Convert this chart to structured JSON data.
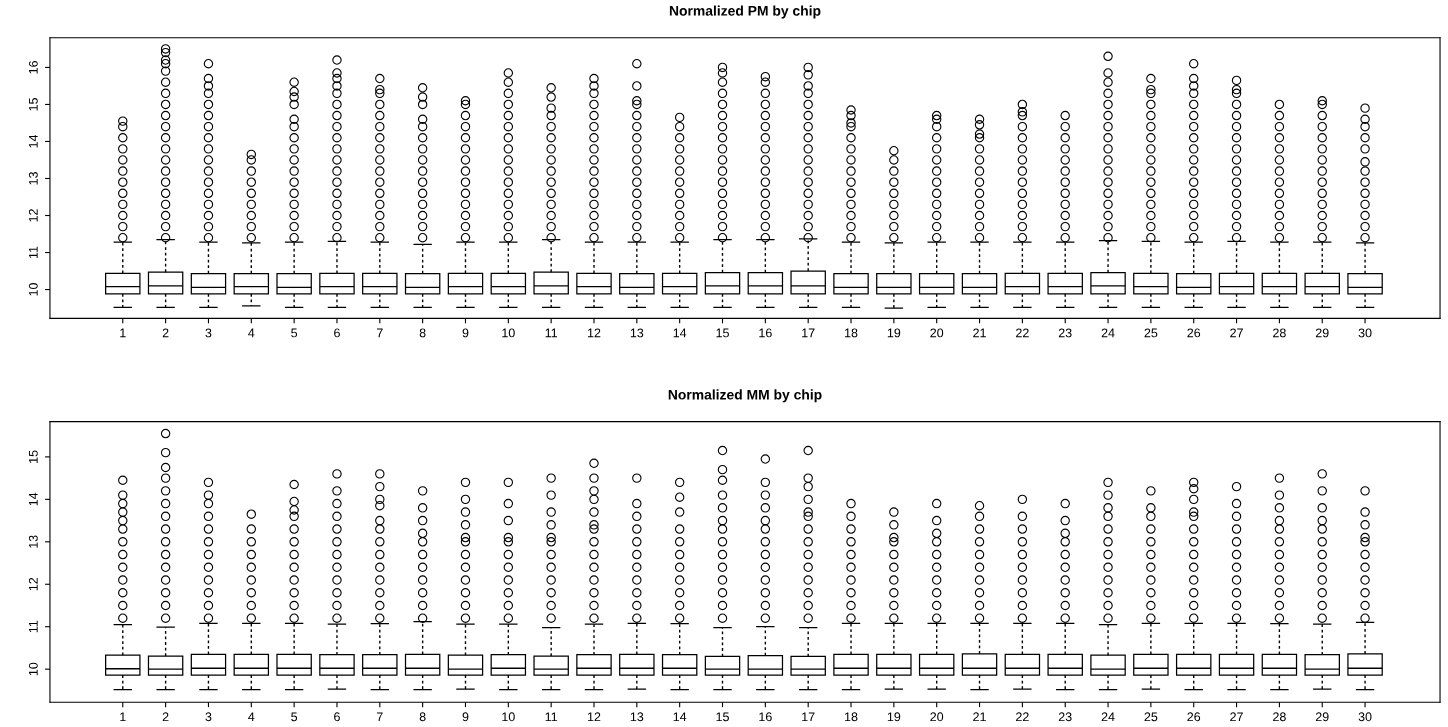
{
  "chart_data": [
    {
      "type": "box",
      "title": "Normalized PM by chip",
      "categories": [
        "1",
        "2",
        "3",
        "4",
        "5",
        "6",
        "7",
        "8",
        "9",
        "10",
        "11",
        "12",
        "13",
        "14",
        "15",
        "16",
        "17",
        "18",
        "19",
        "20",
        "21",
        "22",
        "23",
        "24",
        "25",
        "26",
        "27",
        "28",
        "29",
        "30"
      ],
      "ylim": [
        9.22,
        16.8
      ],
      "yticks": [
        10,
        11,
        12,
        13,
        14,
        15,
        16
      ],
      "grid": false,
      "marker": "circle",
      "color": "#000000",
      "boxes": [
        {
          "low": 9.52,
          "q1": 9.88,
          "median": 10.08,
          "q3": 10.44,
          "high": 11.28,
          "outliers": [
            11.4,
            11.7,
            12.0,
            12.3,
            12.6,
            12.9,
            13.2,
            13.5,
            13.8,
            14.1,
            14.4,
            14.55
          ]
        },
        {
          "low": 9.52,
          "q1": 9.88,
          "median": 10.1,
          "q3": 10.47,
          "high": 11.35,
          "outliers": [
            11.4,
            11.7,
            12.0,
            12.3,
            12.6,
            12.9,
            13.2,
            13.5,
            13.8,
            14.1,
            14.4,
            14.7,
            15.0,
            15.3,
            15.6,
            15.9,
            16.1,
            16.2,
            16.4,
            16.5
          ]
        },
        {
          "low": 9.52,
          "q1": 9.88,
          "median": 10.06,
          "q3": 10.43,
          "high": 11.28,
          "outliers": [
            11.4,
            11.7,
            12.0,
            12.3,
            12.6,
            12.9,
            13.2,
            13.5,
            13.8,
            14.1,
            14.4,
            14.7,
            15.0,
            15.3,
            15.5,
            15.7,
            16.1
          ]
        },
        {
          "low": 9.56,
          "q1": 9.88,
          "median": 10.08,
          "q3": 10.43,
          "high": 11.26,
          "outliers": [
            11.4,
            11.7,
            12.0,
            12.3,
            12.6,
            12.9,
            13.2,
            13.5,
            13.65
          ]
        },
        {
          "low": 9.52,
          "q1": 9.88,
          "median": 10.06,
          "q3": 10.43,
          "high": 11.28,
          "outliers": [
            11.4,
            11.7,
            12.0,
            12.3,
            12.6,
            12.9,
            13.2,
            13.5,
            13.8,
            14.1,
            14.4,
            14.6,
            15.0,
            15.2,
            15.35,
            15.6
          ]
        },
        {
          "low": 9.52,
          "q1": 9.88,
          "median": 10.08,
          "q3": 10.44,
          "high": 11.3,
          "outliers": [
            11.4,
            11.7,
            12.0,
            12.3,
            12.6,
            12.9,
            13.2,
            13.5,
            13.8,
            14.1,
            14.4,
            14.7,
            15.0,
            15.3,
            15.5,
            15.7,
            15.85,
            16.2
          ]
        },
        {
          "low": 9.52,
          "q1": 9.88,
          "median": 10.08,
          "q3": 10.44,
          "high": 11.28,
          "outliers": [
            11.4,
            11.7,
            12.0,
            12.3,
            12.6,
            12.9,
            13.2,
            13.5,
            13.8,
            14.1,
            14.4,
            14.7,
            15.0,
            15.3,
            15.4,
            15.7
          ]
        },
        {
          "low": 9.52,
          "q1": 9.88,
          "median": 10.06,
          "q3": 10.43,
          "high": 11.22,
          "outliers": [
            11.4,
            11.7,
            12.0,
            12.3,
            12.6,
            12.9,
            13.2,
            13.5,
            13.8,
            14.1,
            14.4,
            14.6,
            15.0,
            15.2,
            15.45
          ]
        },
        {
          "low": 9.52,
          "q1": 9.88,
          "median": 10.08,
          "q3": 10.44,
          "high": 11.28,
          "outliers": [
            11.4,
            11.7,
            12.0,
            12.3,
            12.6,
            12.9,
            13.2,
            13.5,
            13.8,
            14.1,
            14.4,
            14.7,
            15.0,
            15.1
          ]
        },
        {
          "low": 9.52,
          "q1": 9.88,
          "median": 10.08,
          "q3": 10.44,
          "high": 11.28,
          "outliers": [
            11.4,
            11.7,
            12.0,
            12.3,
            12.6,
            12.9,
            13.2,
            13.5,
            13.8,
            14.1,
            14.4,
            14.7,
            15.0,
            15.3,
            15.6,
            15.85
          ]
        },
        {
          "low": 9.52,
          "q1": 9.88,
          "median": 10.1,
          "q3": 10.47,
          "high": 11.35,
          "outliers": [
            11.4,
            11.7,
            12.0,
            12.3,
            12.6,
            12.9,
            13.2,
            13.5,
            13.8,
            14.1,
            14.4,
            14.7,
            14.9,
            15.2,
            15.45
          ]
        },
        {
          "low": 9.52,
          "q1": 9.88,
          "median": 10.08,
          "q3": 10.44,
          "high": 11.28,
          "outliers": [
            11.4,
            11.7,
            12.0,
            12.3,
            12.6,
            12.9,
            13.2,
            13.5,
            13.8,
            14.1,
            14.4,
            14.7,
            15.0,
            15.3,
            15.5,
            15.7
          ]
        },
        {
          "low": 9.52,
          "q1": 9.88,
          "median": 10.06,
          "q3": 10.43,
          "high": 11.28,
          "outliers": [
            11.4,
            11.7,
            12.0,
            12.3,
            12.6,
            12.9,
            13.2,
            13.5,
            13.8,
            14.1,
            14.4,
            14.7,
            15.0,
            15.1,
            15.5,
            16.1
          ]
        },
        {
          "low": 9.52,
          "q1": 9.88,
          "median": 10.08,
          "q3": 10.44,
          "high": 11.28,
          "outliers": [
            11.4,
            11.7,
            12.0,
            12.3,
            12.6,
            12.9,
            13.2,
            13.5,
            13.8,
            14.1,
            14.4,
            14.65
          ]
        },
        {
          "low": 9.52,
          "q1": 9.88,
          "median": 10.1,
          "q3": 10.46,
          "high": 11.35,
          "outliers": [
            11.4,
            11.7,
            12.0,
            12.3,
            12.6,
            12.9,
            13.2,
            13.5,
            13.8,
            14.1,
            14.4,
            14.7,
            15.0,
            15.3,
            15.6,
            15.85,
            16.0
          ]
        },
        {
          "low": 9.52,
          "q1": 9.88,
          "median": 10.1,
          "q3": 10.46,
          "high": 11.35,
          "outliers": [
            11.4,
            11.7,
            12.0,
            12.3,
            12.6,
            12.9,
            13.2,
            13.5,
            13.8,
            14.1,
            14.4,
            14.7,
            15.0,
            15.3,
            15.6,
            15.75
          ]
        },
        {
          "low": 9.52,
          "q1": 9.88,
          "median": 10.1,
          "q3": 10.5,
          "high": 11.37,
          "outliers": [
            11.4,
            11.7,
            12.0,
            12.3,
            12.6,
            12.9,
            13.2,
            13.5,
            13.8,
            14.1,
            14.4,
            14.7,
            15.0,
            15.3,
            15.5,
            15.8,
            16.0
          ]
        },
        {
          "low": 9.52,
          "q1": 9.88,
          "median": 10.06,
          "q3": 10.43,
          "high": 11.28,
          "outliers": [
            11.4,
            11.7,
            12.0,
            12.3,
            12.6,
            12.9,
            13.2,
            13.5,
            13.8,
            14.1,
            14.4,
            14.5,
            14.7,
            14.85
          ]
        },
        {
          "low": 9.5,
          "q1": 9.88,
          "median": 10.06,
          "q3": 10.43,
          "high": 11.26,
          "outliers": [
            11.4,
            11.7,
            12.0,
            12.3,
            12.6,
            12.9,
            13.2,
            13.5,
            13.75
          ]
        },
        {
          "low": 9.52,
          "q1": 9.88,
          "median": 10.06,
          "q3": 10.43,
          "high": 11.28,
          "outliers": [
            11.4,
            11.7,
            12.0,
            12.3,
            12.6,
            12.9,
            13.2,
            13.5,
            13.8,
            14.1,
            14.4,
            14.6,
            14.7
          ]
        },
        {
          "low": 9.52,
          "q1": 9.88,
          "median": 10.06,
          "q3": 10.43,
          "high": 11.28,
          "outliers": [
            11.4,
            11.7,
            12.0,
            12.3,
            12.6,
            12.9,
            13.2,
            13.5,
            13.8,
            14.1,
            14.2,
            14.45,
            14.6
          ]
        },
        {
          "low": 9.52,
          "q1": 9.88,
          "median": 10.08,
          "q3": 10.44,
          "high": 11.28,
          "outliers": [
            11.4,
            11.7,
            12.0,
            12.3,
            12.6,
            12.9,
            13.2,
            13.5,
            13.8,
            14.1,
            14.4,
            14.7,
            14.8,
            15.0
          ]
        },
        {
          "low": 9.52,
          "q1": 9.88,
          "median": 10.08,
          "q3": 10.44,
          "high": 11.28,
          "outliers": [
            11.4,
            11.7,
            12.0,
            12.3,
            12.6,
            12.9,
            13.2,
            13.5,
            13.8,
            14.1,
            14.4,
            14.7
          ]
        },
        {
          "low": 9.52,
          "q1": 9.88,
          "median": 10.1,
          "q3": 10.46,
          "high": 11.32,
          "outliers": [
            11.4,
            11.7,
            12.0,
            12.3,
            12.6,
            12.9,
            13.2,
            13.5,
            13.8,
            14.1,
            14.4,
            14.7,
            15.0,
            15.3,
            15.6,
            15.85,
            16.3
          ]
        },
        {
          "low": 9.52,
          "q1": 9.88,
          "median": 10.08,
          "q3": 10.44,
          "high": 11.3,
          "outliers": [
            11.4,
            11.7,
            12.0,
            12.3,
            12.6,
            12.9,
            13.2,
            13.5,
            13.8,
            14.1,
            14.4,
            14.7,
            15.0,
            15.3,
            15.4,
            15.7
          ]
        },
        {
          "low": 9.52,
          "q1": 9.88,
          "median": 10.06,
          "q3": 10.43,
          "high": 11.28,
          "outliers": [
            11.4,
            11.7,
            12.0,
            12.3,
            12.6,
            12.9,
            13.2,
            13.5,
            13.8,
            14.1,
            14.4,
            14.7,
            15.0,
            15.3,
            15.5,
            15.7,
            16.1
          ]
        },
        {
          "low": 9.52,
          "q1": 9.88,
          "median": 10.08,
          "q3": 10.44,
          "high": 11.3,
          "outliers": [
            11.4,
            11.7,
            12.0,
            12.3,
            12.6,
            12.9,
            13.2,
            13.5,
            13.8,
            14.1,
            14.4,
            14.7,
            15.0,
            15.3,
            15.4,
            15.65
          ]
        },
        {
          "low": 9.52,
          "q1": 9.88,
          "median": 10.08,
          "q3": 10.44,
          "high": 11.28,
          "outliers": [
            11.4,
            11.7,
            12.0,
            12.3,
            12.6,
            12.9,
            13.2,
            13.5,
            13.8,
            14.1,
            14.4,
            14.7,
            15.0
          ]
        },
        {
          "low": 9.52,
          "q1": 9.88,
          "median": 10.08,
          "q3": 10.44,
          "high": 11.28,
          "outliers": [
            11.4,
            11.7,
            12.0,
            12.3,
            12.6,
            12.9,
            13.2,
            13.5,
            13.8,
            14.1,
            14.4,
            14.7,
            15.0,
            15.1
          ]
        },
        {
          "low": 9.52,
          "q1": 9.88,
          "median": 10.06,
          "q3": 10.43,
          "high": 11.26,
          "outliers": [
            11.4,
            11.7,
            12.0,
            12.3,
            12.6,
            12.9,
            13.2,
            13.45,
            13.8,
            14.1,
            14.4,
            14.6,
            14.9
          ]
        }
      ]
    },
    {
      "type": "box",
      "title": "Normalized MM by chip",
      "categories": [
        "1",
        "2",
        "3",
        "4",
        "5",
        "6",
        "7",
        "8",
        "9",
        "10",
        "11",
        "12",
        "13",
        "14",
        "15",
        "16",
        "17",
        "18",
        "19",
        "20",
        "21",
        "22",
        "23",
        "24",
        "25",
        "26",
        "27",
        "28",
        "29",
        "30"
      ],
      "ylim": [
        9.22,
        15.83
      ],
      "yticks": [
        10,
        11,
        12,
        13,
        14,
        15
      ],
      "grid": false,
      "marker": "circle",
      "color": "#000000",
      "boxes": [
        {
          "low": 9.52,
          "q1": 9.86,
          "median": 10.01,
          "q3": 10.33,
          "high": 11.05,
          "outliers": [
            11.2,
            11.5,
            11.8,
            12.1,
            12.4,
            12.7,
            13.0,
            13.3,
            13.5,
            13.7,
            13.9,
            14.1,
            14.45
          ]
        },
        {
          "low": 9.52,
          "q1": 9.86,
          "median": 10.0,
          "q3": 10.31,
          "high": 10.99,
          "outliers": [
            11.2,
            11.5,
            11.8,
            12.1,
            12.4,
            12.7,
            13.0,
            13.3,
            13.6,
            13.9,
            14.2,
            14.5,
            14.75,
            15.1,
            15.55
          ]
        },
        {
          "low": 9.52,
          "q1": 9.86,
          "median": 10.02,
          "q3": 10.35,
          "high": 11.08,
          "outliers": [
            11.2,
            11.5,
            11.8,
            12.1,
            12.4,
            12.7,
            13.0,
            13.3,
            13.6,
            13.9,
            14.1,
            14.4
          ]
        },
        {
          "low": 9.52,
          "q1": 9.86,
          "median": 10.02,
          "q3": 10.35,
          "high": 11.08,
          "outliers": [
            11.2,
            11.5,
            11.8,
            12.1,
            12.4,
            12.7,
            13.0,
            13.3,
            13.65
          ]
        },
        {
          "low": 9.52,
          "q1": 9.86,
          "median": 10.02,
          "q3": 10.35,
          "high": 11.08,
          "outliers": [
            11.2,
            11.5,
            11.8,
            12.1,
            12.4,
            12.7,
            13.0,
            13.3,
            13.6,
            13.75,
            13.95,
            14.35
          ]
        },
        {
          "low": 9.53,
          "q1": 9.86,
          "median": 10.02,
          "q3": 10.34,
          "high": 11.06,
          "outliers": [
            11.2,
            11.5,
            11.8,
            12.1,
            12.4,
            12.7,
            13.0,
            13.3,
            13.6,
            13.9,
            14.2,
            14.6
          ]
        },
        {
          "low": 9.52,
          "q1": 9.86,
          "median": 10.02,
          "q3": 10.34,
          "high": 11.07,
          "outliers": [
            11.2,
            11.5,
            11.8,
            12.1,
            12.4,
            12.7,
            13.0,
            13.3,
            13.5,
            13.85,
            14.0,
            14.3,
            14.6
          ]
        },
        {
          "low": 9.52,
          "q1": 9.86,
          "median": 10.02,
          "q3": 10.35,
          "high": 11.12,
          "outliers": [
            11.2,
            11.5,
            11.8,
            12.1,
            12.4,
            12.7,
            13.0,
            13.2,
            13.5,
            13.8,
            14.2
          ]
        },
        {
          "low": 9.53,
          "q1": 9.86,
          "median": 10.0,
          "q3": 10.33,
          "high": 11.06,
          "outliers": [
            11.2,
            11.5,
            11.8,
            12.1,
            12.4,
            12.7,
            13.0,
            13.1,
            13.4,
            13.7,
            14.0,
            14.4
          ]
        },
        {
          "low": 9.52,
          "q1": 9.86,
          "median": 10.02,
          "q3": 10.34,
          "high": 11.06,
          "outliers": [
            11.2,
            11.5,
            11.8,
            12.1,
            12.4,
            12.7,
            13.0,
            13.1,
            13.5,
            13.9,
            14.4
          ]
        },
        {
          "low": 9.52,
          "q1": 9.86,
          "median": 10.0,
          "q3": 10.31,
          "high": 10.98,
          "outliers": [
            11.2,
            11.5,
            11.8,
            12.1,
            12.4,
            12.7,
            13.0,
            13.1,
            13.4,
            13.7,
            14.1,
            14.5
          ]
        },
        {
          "low": 9.52,
          "q1": 9.86,
          "median": 10.02,
          "q3": 10.34,
          "high": 11.06,
          "outliers": [
            11.2,
            11.5,
            11.8,
            12.1,
            12.4,
            12.7,
            13.0,
            13.3,
            13.4,
            13.7,
            14.0,
            14.2,
            14.5,
            14.85
          ]
        },
        {
          "low": 9.53,
          "q1": 9.86,
          "median": 10.02,
          "q3": 10.35,
          "high": 11.08,
          "outliers": [
            11.2,
            11.5,
            11.8,
            12.1,
            12.4,
            12.7,
            13.0,
            13.3,
            13.6,
            13.9,
            14.5
          ]
        },
        {
          "low": 9.52,
          "q1": 9.86,
          "median": 10.02,
          "q3": 10.34,
          "high": 11.07,
          "outliers": [
            11.2,
            11.5,
            11.8,
            12.1,
            12.4,
            12.7,
            13.0,
            13.3,
            13.7,
            14.05,
            14.4
          ]
        },
        {
          "low": 9.52,
          "q1": 9.86,
          "median": 10.0,
          "q3": 10.3,
          "high": 10.98,
          "outliers": [
            11.2,
            11.5,
            11.8,
            12.1,
            12.4,
            12.7,
            13.0,
            13.3,
            13.5,
            13.8,
            14.1,
            14.45,
            14.7,
            15.15
          ]
        },
        {
          "low": 9.52,
          "q1": 9.86,
          "median": 10.0,
          "q3": 10.32,
          "high": 11.0,
          "outliers": [
            11.2,
            11.5,
            11.8,
            12.1,
            12.4,
            12.7,
            13.0,
            13.3,
            13.5,
            13.8,
            14.1,
            14.4,
            14.95
          ]
        },
        {
          "low": 9.52,
          "q1": 9.86,
          "median": 10.0,
          "q3": 10.3,
          "high": 10.98,
          "outliers": [
            11.2,
            11.5,
            11.8,
            12.1,
            12.4,
            12.7,
            13.0,
            13.3,
            13.6,
            13.7,
            14.0,
            14.3,
            14.5,
            15.15
          ]
        },
        {
          "low": 9.52,
          "q1": 9.86,
          "median": 10.02,
          "q3": 10.35,
          "high": 11.08,
          "outliers": [
            11.2,
            11.5,
            11.8,
            12.1,
            12.4,
            12.7,
            13.0,
            13.3,
            13.6,
            13.9
          ]
        },
        {
          "low": 9.53,
          "q1": 9.86,
          "median": 10.02,
          "q3": 10.35,
          "high": 11.08,
          "outliers": [
            11.2,
            11.5,
            11.8,
            12.1,
            12.4,
            12.7,
            13.0,
            13.1,
            13.4,
            13.7
          ]
        },
        {
          "low": 9.53,
          "q1": 9.86,
          "median": 10.02,
          "q3": 10.35,
          "high": 11.08,
          "outliers": [
            11.2,
            11.5,
            11.8,
            12.1,
            12.4,
            12.7,
            13.0,
            13.2,
            13.5,
            13.9
          ]
        },
        {
          "low": 9.52,
          "q1": 9.86,
          "median": 10.02,
          "q3": 10.36,
          "high": 11.08,
          "outliers": [
            11.2,
            11.5,
            11.8,
            12.1,
            12.4,
            12.7,
            13.0,
            13.3,
            13.6,
            13.85
          ]
        },
        {
          "low": 9.53,
          "q1": 9.86,
          "median": 10.02,
          "q3": 10.35,
          "high": 11.08,
          "outliers": [
            11.2,
            11.5,
            11.8,
            12.1,
            12.4,
            12.7,
            13.0,
            13.3,
            13.6,
            14.0
          ]
        },
        {
          "low": 9.52,
          "q1": 9.86,
          "median": 10.02,
          "q3": 10.35,
          "high": 11.08,
          "outliers": [
            11.2,
            11.5,
            11.8,
            12.1,
            12.4,
            12.7,
            13.0,
            13.2,
            13.5,
            13.9
          ]
        },
        {
          "low": 9.52,
          "q1": 9.86,
          "median": 10.0,
          "q3": 10.33,
          "high": 11.05,
          "outliers": [
            11.2,
            11.5,
            11.8,
            12.1,
            12.4,
            12.7,
            13.0,
            13.3,
            13.6,
            13.8,
            14.1,
            14.4
          ]
        },
        {
          "low": 9.53,
          "q1": 9.86,
          "median": 10.02,
          "q3": 10.35,
          "high": 11.08,
          "outliers": [
            11.2,
            11.5,
            11.8,
            12.1,
            12.4,
            12.7,
            13.0,
            13.3,
            13.6,
            13.8,
            14.2
          ]
        },
        {
          "low": 9.52,
          "q1": 9.86,
          "median": 10.02,
          "q3": 10.35,
          "high": 11.08,
          "outliers": [
            11.2,
            11.5,
            11.8,
            12.1,
            12.4,
            12.7,
            13.0,
            13.3,
            13.6,
            13.7,
            14.0,
            14.25,
            14.4
          ]
        },
        {
          "low": 9.52,
          "q1": 9.86,
          "median": 10.02,
          "q3": 10.35,
          "high": 11.08,
          "outliers": [
            11.2,
            11.5,
            11.8,
            12.1,
            12.4,
            12.7,
            13.0,
            13.3,
            13.6,
            13.9,
            14.3
          ]
        },
        {
          "low": 9.52,
          "q1": 9.86,
          "median": 10.02,
          "q3": 10.35,
          "high": 11.07,
          "outliers": [
            11.2,
            11.5,
            11.8,
            12.1,
            12.4,
            12.7,
            13.0,
            13.3,
            13.5,
            13.8,
            14.1,
            14.5
          ]
        },
        {
          "low": 9.53,
          "q1": 9.86,
          "median": 10.0,
          "q3": 10.34,
          "high": 11.06,
          "outliers": [
            11.2,
            11.5,
            11.8,
            12.1,
            12.4,
            12.7,
            13.0,
            13.3,
            13.5,
            13.8,
            14.2,
            14.6
          ]
        },
        {
          "low": 9.52,
          "q1": 9.86,
          "median": 10.02,
          "q3": 10.36,
          "high": 11.1,
          "outliers": [
            11.2,
            11.5,
            11.8,
            12.1,
            12.4,
            12.7,
            13.0,
            13.1,
            13.4,
            13.7,
            14.2
          ]
        }
      ]
    }
  ]
}
